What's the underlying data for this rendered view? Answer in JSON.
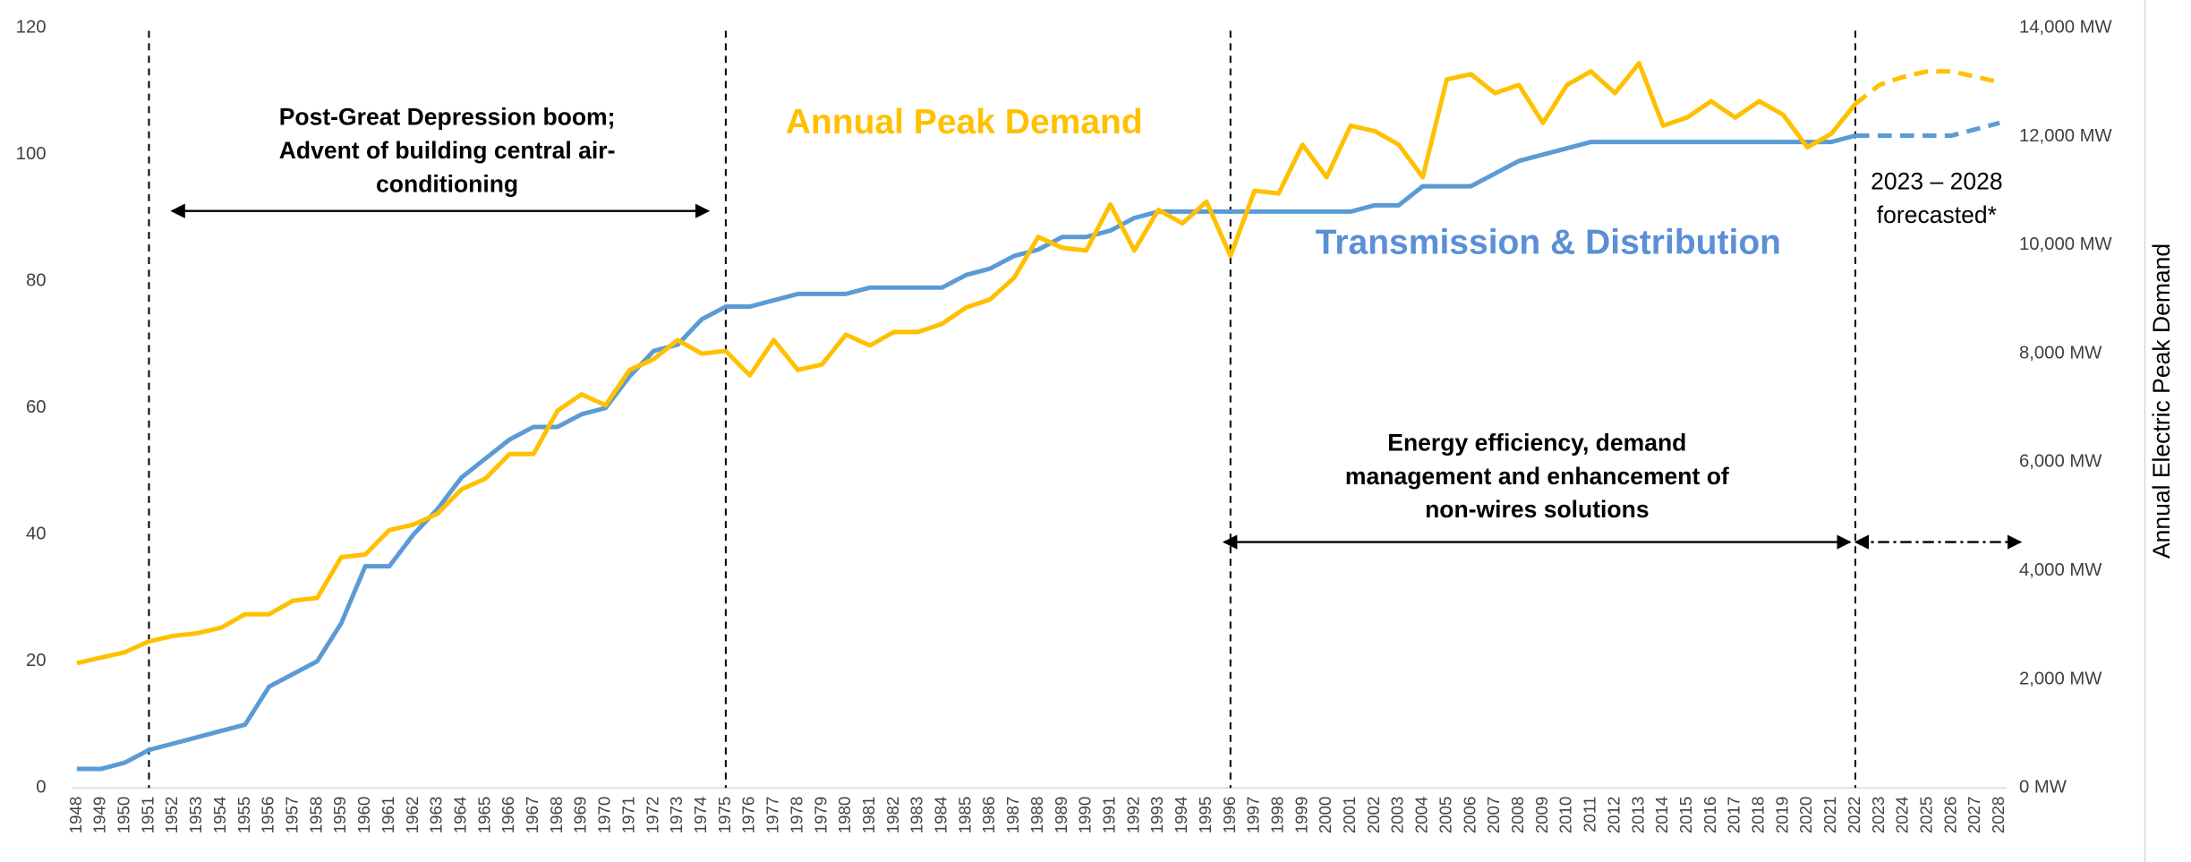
{
  "chart_data": {
    "type": "line",
    "categories": [
      "1948",
      "1949",
      "1950",
      "1951",
      "1952",
      "1953",
      "1954",
      "1955",
      "1956",
      "1957",
      "1958",
      "1959",
      "1960",
      "1961",
      "1962",
      "1963",
      "1964",
      "1965",
      "1966",
      "1967",
      "1968",
      "1969",
      "1970",
      "1971",
      "1972",
      "1973",
      "1974",
      "1975",
      "1976",
      "1977",
      "1978",
      "1979",
      "1980",
      "1981",
      "1982",
      "1983",
      "1984",
      "1985",
      "1986",
      "1987",
      "1988",
      "1989",
      "1990",
      "1991",
      "1992",
      "1993",
      "1994",
      "1995",
      "1996",
      "1997",
      "1998",
      "1999",
      "2000",
      "2001",
      "2002",
      "2003",
      "2004",
      "2005",
      "2006",
      "2007",
      "2008",
      "2009",
      "2010",
      "2011",
      "2012",
      "2013",
      "2014",
      "2015",
      "2016",
      "2017",
      "2018",
      "2019",
      "2020",
      "2021",
      "2022",
      "2023",
      "2024",
      "2025",
      "2026",
      "2027",
      "2028"
    ],
    "series": [
      {
        "name": "Transmission & Distribution",
        "color": "#5b9bd5",
        "axis": "y",
        "values": [
          3,
          3,
          4,
          6,
          7,
          8,
          9,
          10,
          16,
          18,
          20,
          26,
          35,
          35,
          40,
          44,
          49,
          52,
          55,
          57,
          57,
          59,
          60,
          65,
          69,
          70,
          74,
          76,
          76,
          77,
          78,
          78,
          78,
          79,
          79,
          79,
          79,
          81,
          82,
          84,
          85,
          87,
          87,
          88,
          90,
          91,
          91,
          91,
          91,
          91,
          91,
          91,
          91,
          91,
          92,
          92,
          95,
          95,
          95,
          97,
          99,
          100,
          101,
          102,
          102,
          102,
          102,
          102,
          102,
          102,
          102,
          102,
          102,
          102,
          103,
          103,
          103,
          103,
          103,
          104,
          105
        ]
      },
      {
        "name": "Annual Peak Demand",
        "color": "#ffc000",
        "axis": "y2",
        "values": [
          2300,
          2400,
          2500,
          2700,
          2800,
          2850,
          2950,
          3200,
          3200,
          3450,
          3500,
          4250,
          4300,
          4750,
          4850,
          5050,
          5500,
          5700,
          6150,
          6150,
          6950,
          7250,
          7050,
          7700,
          7900,
          8250,
          8000,
          8050,
          7600,
          8250,
          7700,
          7800,
          8350,
          8150,
          8400,
          8400,
          8550,
          8850,
          9000,
          9400,
          10150,
          9950,
          9900,
          10750,
          9900,
          10650,
          10400,
          10800,
          9800,
          11000,
          10950,
          11850,
          11250,
          12200,
          12100,
          11850,
          11250,
          13050,
          13150,
          12800,
          12950,
          12250,
          12950,
          13200,
          12800,
          13350,
          12200,
          12350,
          12650,
          12350,
          12650,
          12400,
          11800,
          12050,
          12600,
          12950,
          13100,
          13200,
          13200,
          13100,
          13000
        ]
      }
    ],
    "dash_from": "2022",
    "vlines": [
      "1951",
      "1975",
      "1996",
      "2022"
    ],
    "ylim": [
      0,
      120
    ],
    "yticks": [
      0,
      20,
      40,
      60,
      80,
      100,
      120
    ],
    "y2lim": [
      0,
      14000
    ],
    "y2ticks": [
      {
        "value": 0,
        "label": "0 MW"
      },
      {
        "value": 2000,
        "label": "2,000 MW"
      },
      {
        "value": 4000,
        "label": "4,000 MW"
      },
      {
        "value": 6000,
        "label": "6,000 MW"
      },
      {
        "value": 8000,
        "label": "8,000 MW"
      },
      {
        "value": 10000,
        "label": "10,000 MW"
      },
      {
        "value": 12000,
        "label": "12,000 MW"
      },
      {
        "value": 14000,
        "label": "14,000 MW"
      }
    ],
    "y2label": "Annual Electric Peak Demand",
    "annotations": [
      {
        "lines": [
          "Post-Great Depression boom;",
          "Advent of building central air-",
          "conditioning"
        ]
      },
      {
        "lines": [
          "Energy efficiency, demand",
          "management and enhancement of",
          "non-wires solutions"
        ]
      },
      {
        "lines": [
          "2023 – 2028",
          "forecasted*"
        ]
      }
    ]
  }
}
